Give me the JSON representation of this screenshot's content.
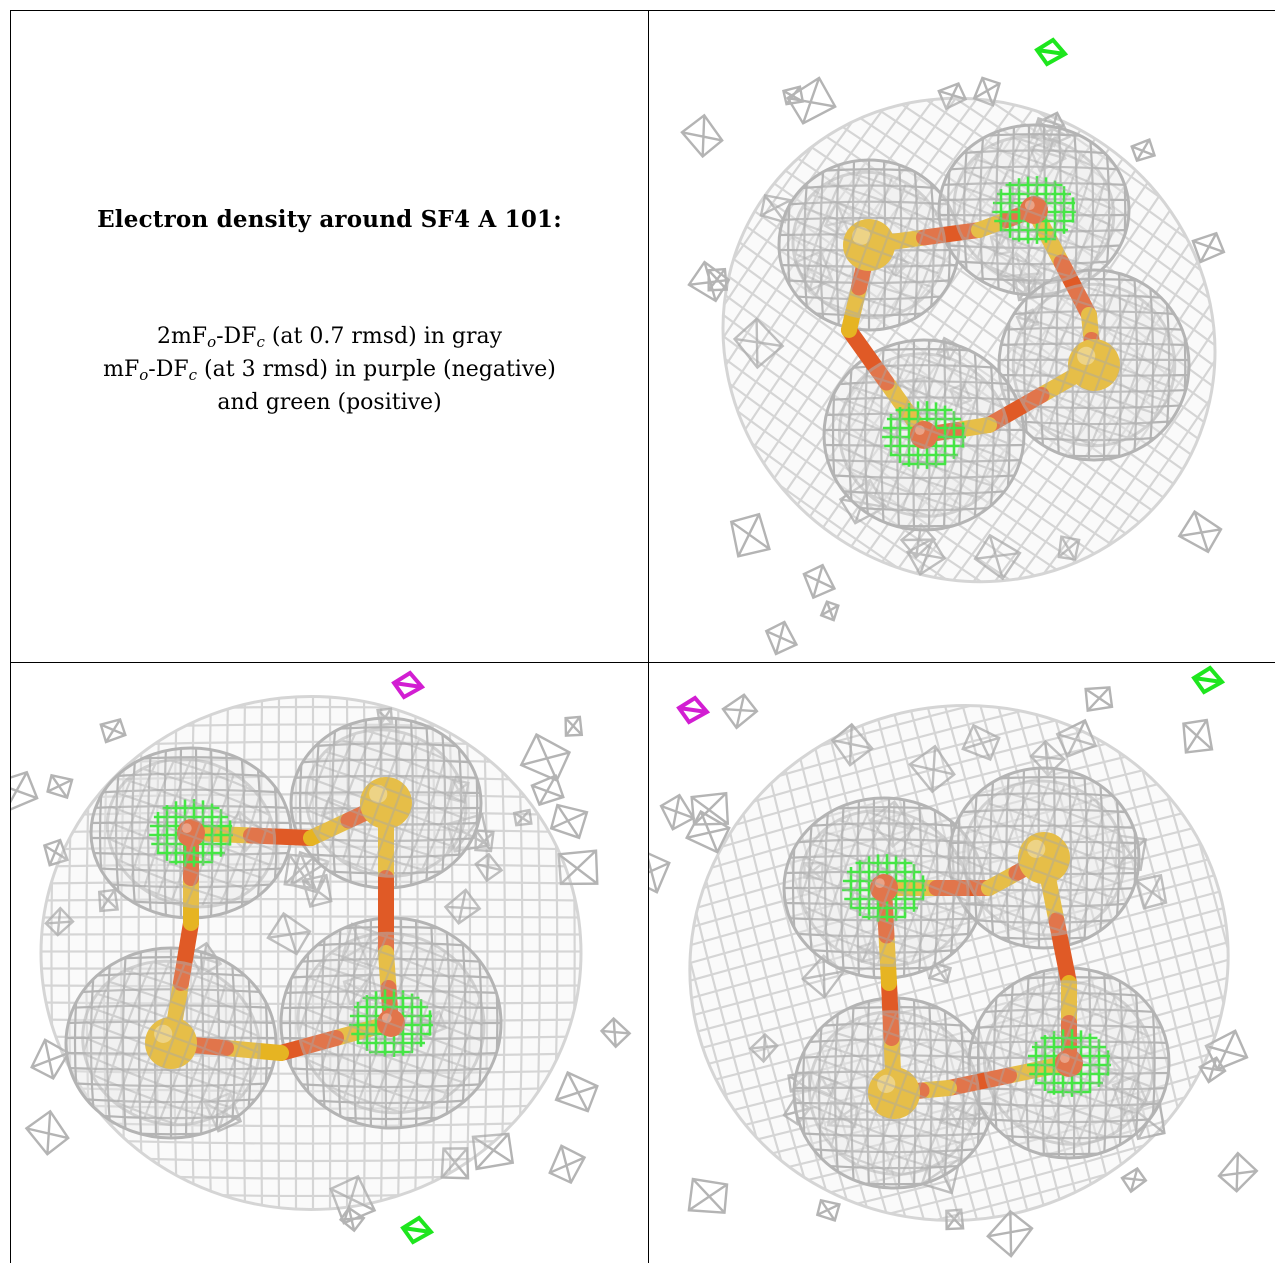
{
  "title": "Electron density around SF4 A 101:",
  "legend": {
    "line1": {
      "a": "2mF",
      "a_sub": "o",
      "b": "-DF",
      "b_sub": "c",
      "rest": " (at 0.7 rmsd) in gray"
    },
    "line2": {
      "a": "mF",
      "a_sub": "o",
      "b": "-DF",
      "b_sub": "c",
      "rest": " (at 3 rmsd) in purple (negative)"
    },
    "line3": "and green (positive)"
  },
  "colors": {
    "mesh": "#b4b4b4",
    "sulfur": "#e6b422",
    "iron": "#e05a26",
    "positive": "#1ee61e",
    "negative": "#d21ed2",
    "border": "#000000"
  },
  "panels": [
    {
      "name": "view-1",
      "description_icon": "electron-density-mesh-icon"
    },
    {
      "name": "view-2",
      "description_icon": "electron-density-mesh-icon"
    },
    {
      "name": "view-3",
      "description_icon": "electron-density-mesh-icon"
    }
  ]
}
